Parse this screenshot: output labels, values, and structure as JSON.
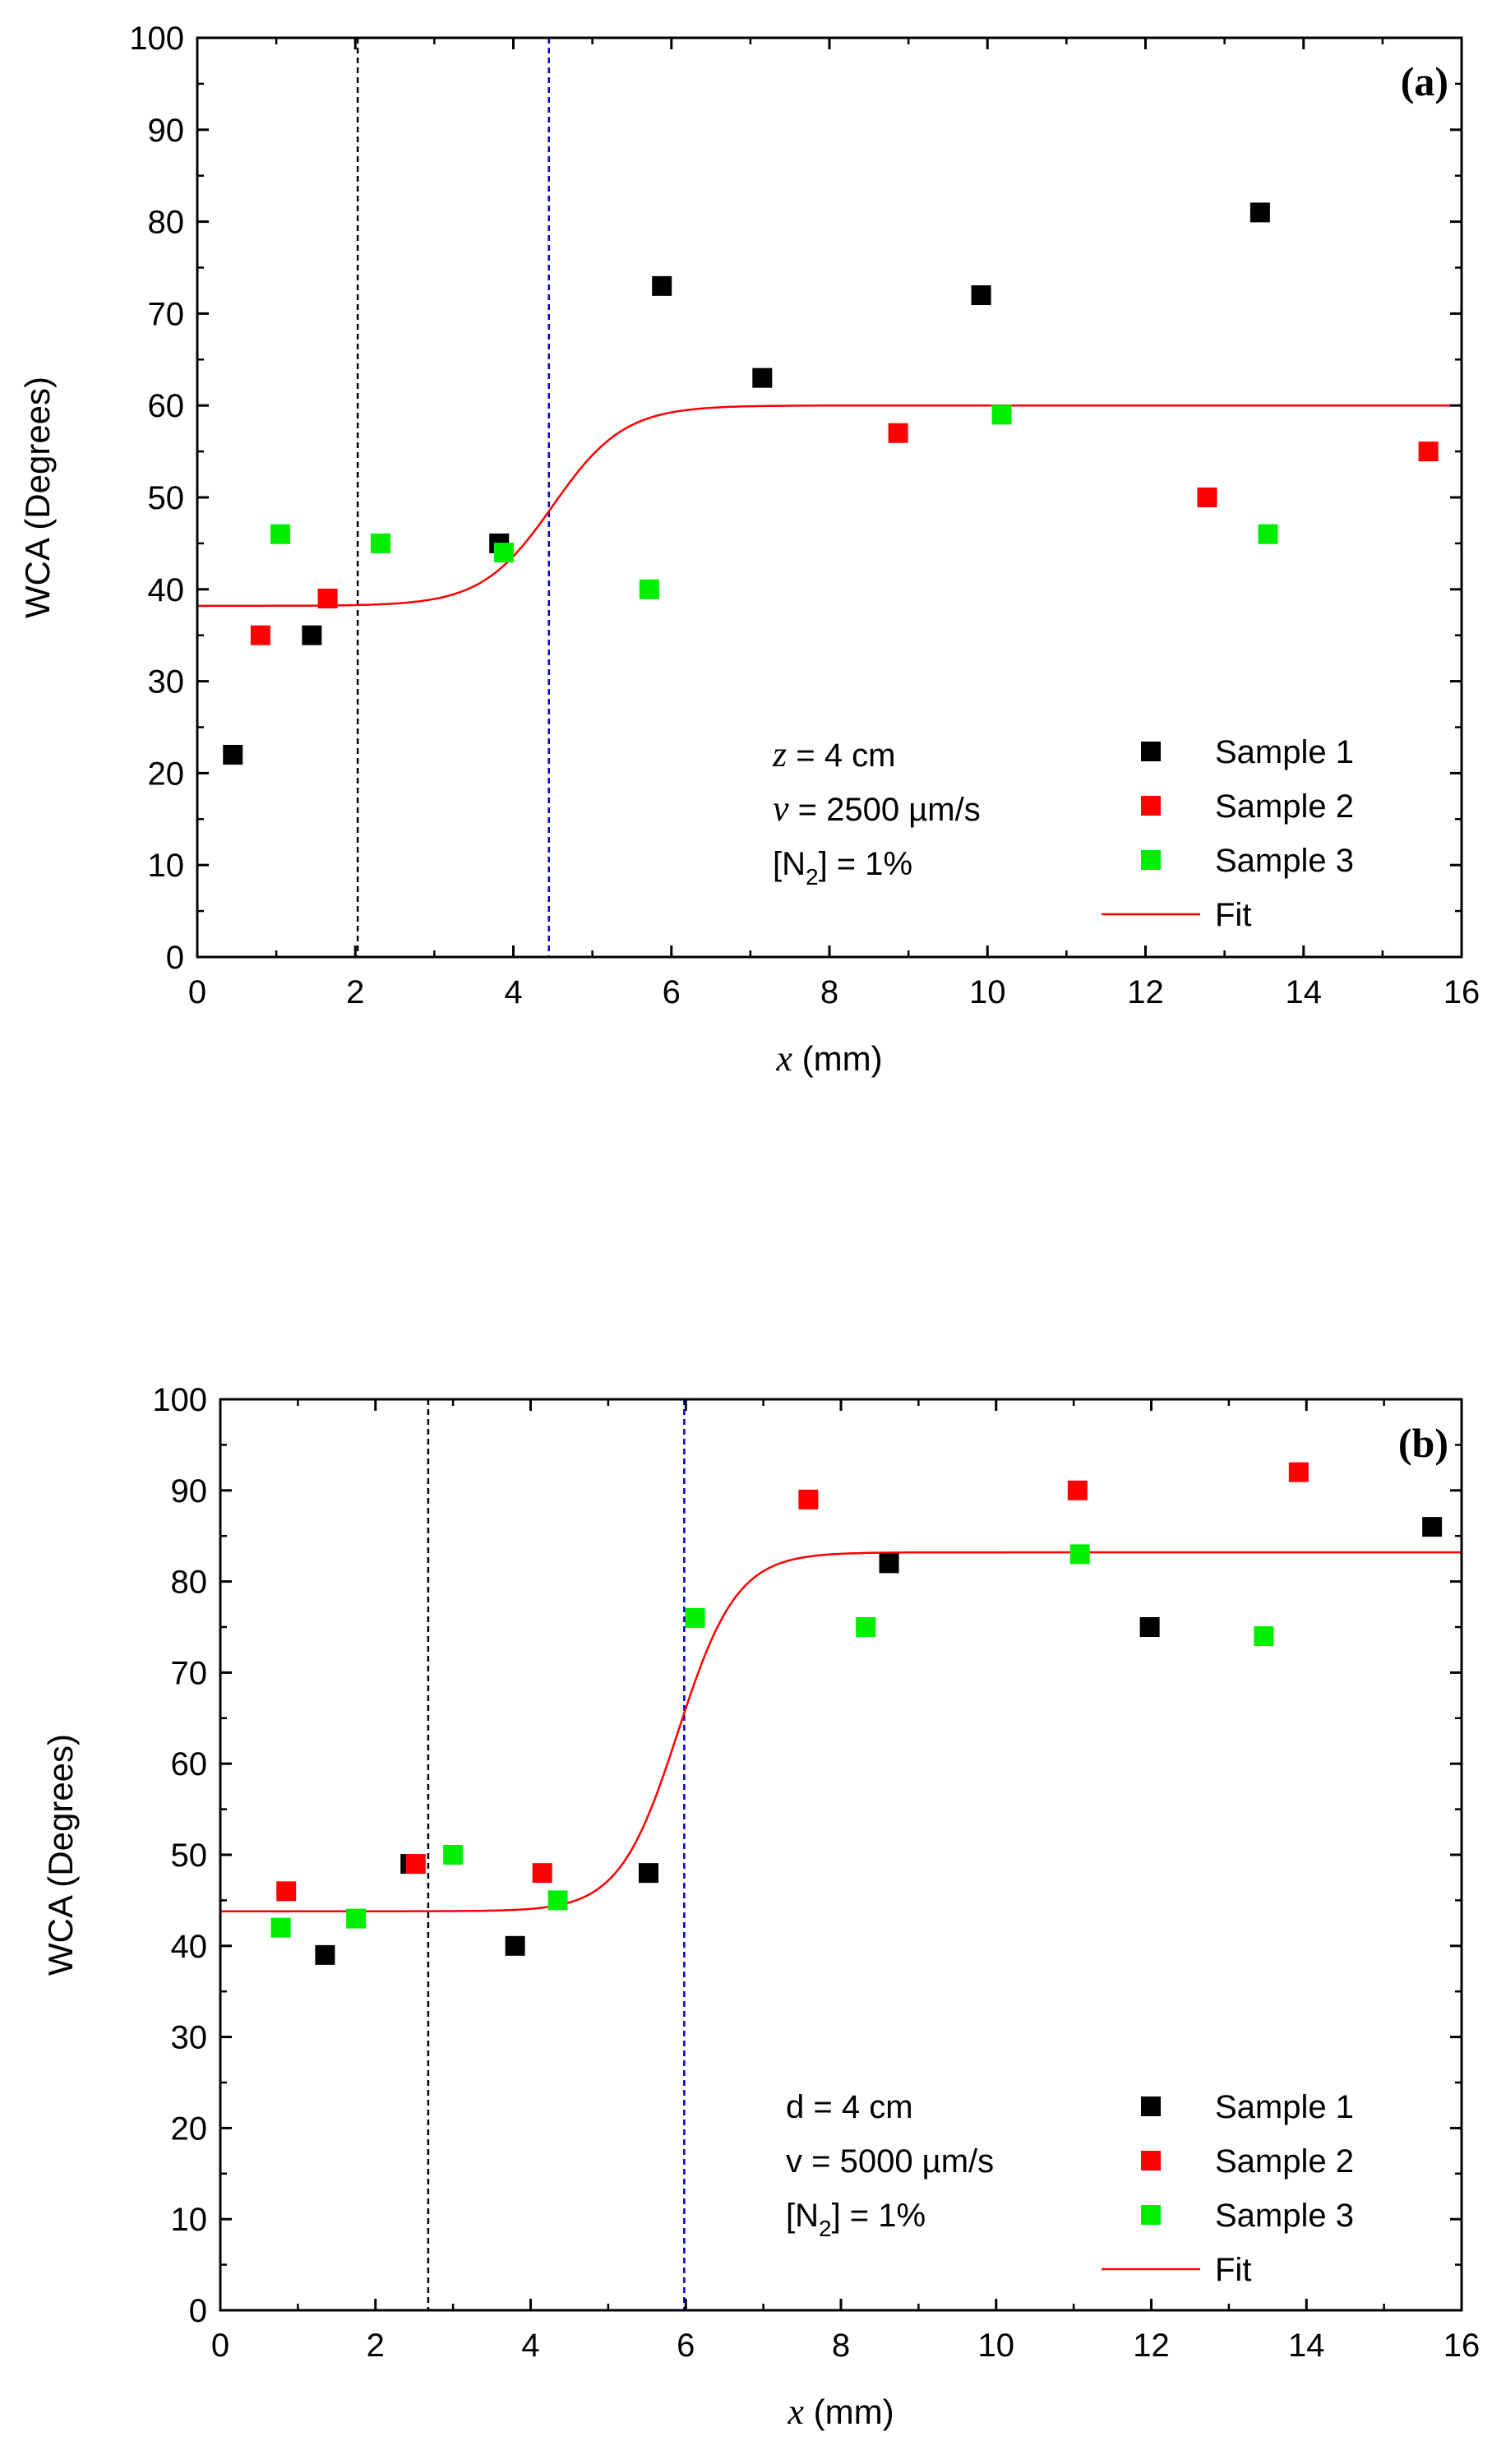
{
  "chart_data": [
    {
      "type": "scatter",
      "panel_label": "(a)",
      "xlabel_var": "x",
      "xlabel_unit": " (mm)",
      "ylabel": "WCA (Degrees)",
      "xlim": [
        0,
        16
      ],
      "ylim": [
        0,
        100
      ],
      "x_ticks": [
        "0",
        "2",
        "4",
        "6",
        "8",
        "10",
        "12",
        "14",
        "16"
      ],
      "y_ticks": [
        "0",
        "10",
        "20",
        "30",
        "40",
        "50",
        "60",
        "70",
        "80",
        "90",
        "100"
      ],
      "vlines": [
        {
          "x": 2.03,
          "color": "#000000"
        },
        {
          "x": 4.45,
          "color": "#0000cc"
        }
      ],
      "annotation": [
        {
          "var": "z",
          "rest": " = 4 cm"
        },
        {
          "var": "v",
          "rest": " = 2500 µm/s"
        },
        {
          "var": "",
          "rest": "[N",
          "sub": "2",
          "rest2": "] = 1%"
        }
      ],
      "series": [
        {
          "name": "Sample 1",
          "color": "#000000",
          "x": [
            0.45,
            1.45,
            3.82,
            5.88,
            7.15,
            9.92,
            13.45
          ],
          "y": [
            22,
            35,
            45,
            73,
            63,
            72,
            81
          ]
        },
        {
          "name": "Sample 2",
          "color": "#ff0000",
          "x": [
            0.8,
            1.65,
            8.87,
            12.78,
            15.58
          ],
          "y": [
            35,
            39,
            57,
            50,
            55
          ]
        },
        {
          "name": "Sample 3",
          "color": "#00ee00",
          "x": [
            1.05,
            2.32,
            3.88,
            5.72,
            10.18,
            13.55
          ],
          "y": [
            46,
            45,
            44,
            40,
            59,
            46
          ]
        }
      ],
      "fit": {
        "name": "Fit",
        "color": "#ff0000",
        "y_low": 38.2,
        "y_high": 60.0,
        "x_mid": 4.5,
        "width": 0.45
      }
    },
    {
      "type": "scatter",
      "panel_label": "(b)",
      "xlabel_var": "x",
      "xlabel_unit": " (mm)",
      "ylabel": "WCA (Degrees)",
      "xlim": [
        0,
        16
      ],
      "ylim": [
        0,
        100
      ],
      "x_ticks": [
        "0",
        "2",
        "4",
        "6",
        "8",
        "10",
        "12",
        "14",
        "16"
      ],
      "y_ticks": [
        "0",
        "10",
        "20",
        "30",
        "40",
        "50",
        "60",
        "70",
        "80",
        "90",
        "100"
      ],
      "vlines": [
        {
          "x": 2.68,
          "color": "#000000"
        },
        {
          "x": 5.98,
          "color": "#0000cc"
        }
      ],
      "annotation": [
        {
          "var": "",
          "rest": "d = 4 cm"
        },
        {
          "var": "",
          "rest": "v = 5000 µm/s"
        },
        {
          "var": "",
          "rest": "[N",
          "sub": "2",
          "rest2": "] = 1%"
        }
      ],
      "series": [
        {
          "name": "Sample 1",
          "color": "#000000",
          "x": [
            1.35,
            2.45,
            3.8,
            5.52,
            8.62,
            11.98,
            15.62
          ],
          "y": [
            39,
            49,
            40,
            48,
            82,
            75,
            86
          ]
        },
        {
          "name": "Sample 2",
          "color": "#ff0000",
          "x": [
            0.85,
            2.52,
            4.15,
            7.58,
            11.05,
            13.9
          ],
          "y": [
            46,
            49,
            48,
            89,
            90,
            92
          ]
        },
        {
          "name": "Sample 3",
          "color": "#00ee00",
          "x": [
            0.78,
            1.75,
            3.0,
            4.35,
            6.12,
            8.32,
            11.08,
            13.45
          ],
          "y": [
            42,
            43,
            50,
            45,
            76,
            75,
            83,
            74
          ]
        }
      ],
      "fit": {
        "name": "Fit",
        "color": "#ff0000",
        "y_low": 43.8,
        "y_high": 83.2,
        "x_mid": 5.9,
        "width": 0.38
      }
    }
  ]
}
